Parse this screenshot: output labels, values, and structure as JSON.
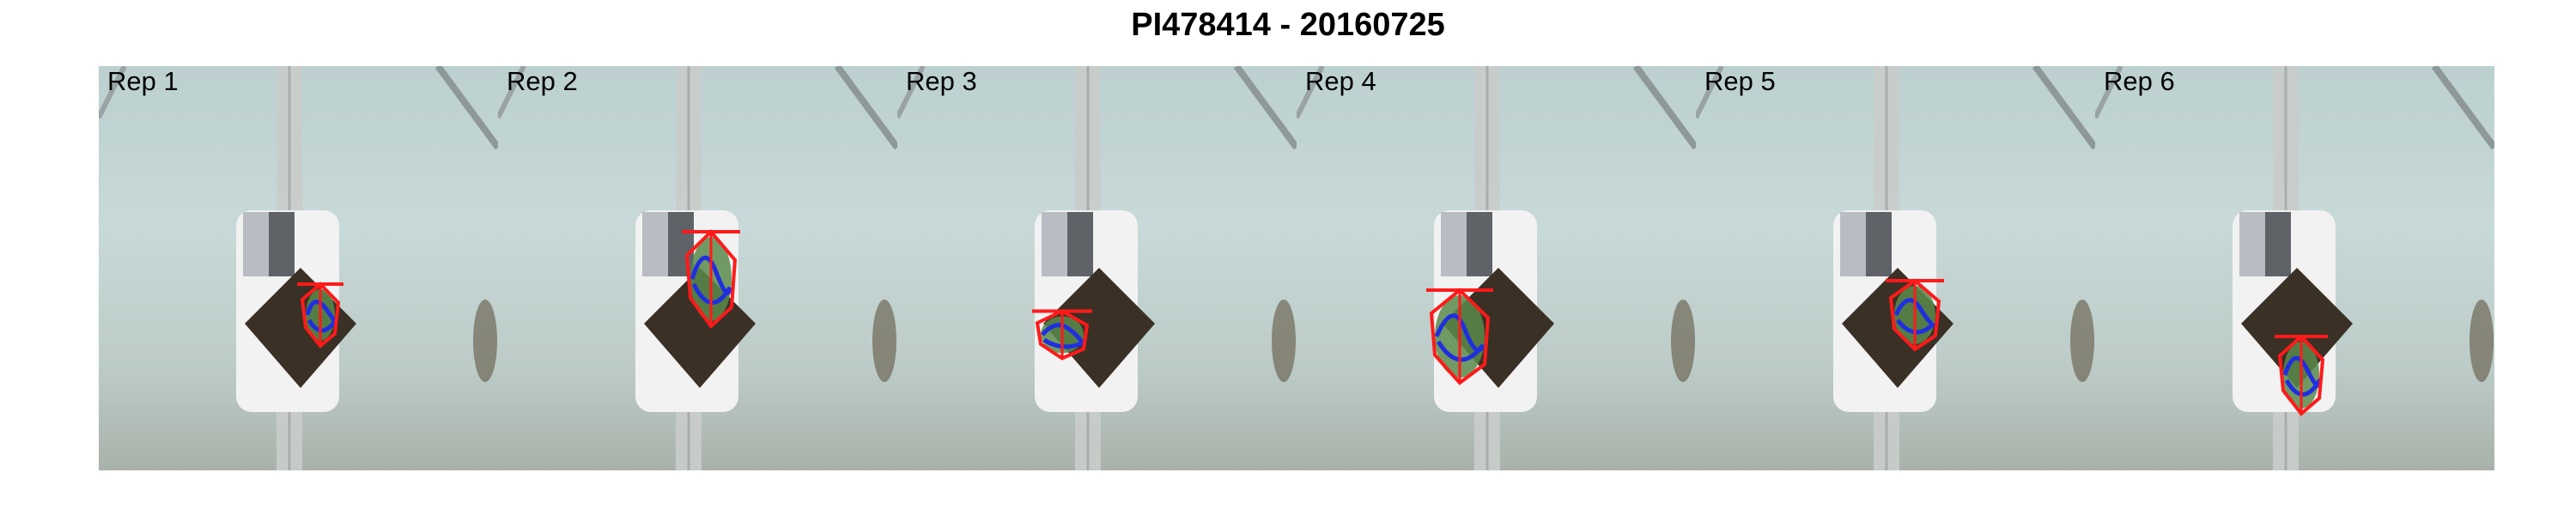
{
  "title": "PI478414 - 20160725",
  "panels": [
    {
      "label": "Rep 1"
    },
    {
      "label": "Rep 2"
    },
    {
      "label": "Rep 3"
    },
    {
      "label": "Rep 4"
    },
    {
      "label": "Rep 5"
    },
    {
      "label": "Rep 6"
    }
  ],
  "colors": {
    "outline": "#ff1a1a",
    "contour": "#1f2fe0",
    "plant": "#5a8a4a",
    "soil": "#3a3025",
    "pot": "#f2f2f2",
    "track": "#c9cccb"
  }
}
